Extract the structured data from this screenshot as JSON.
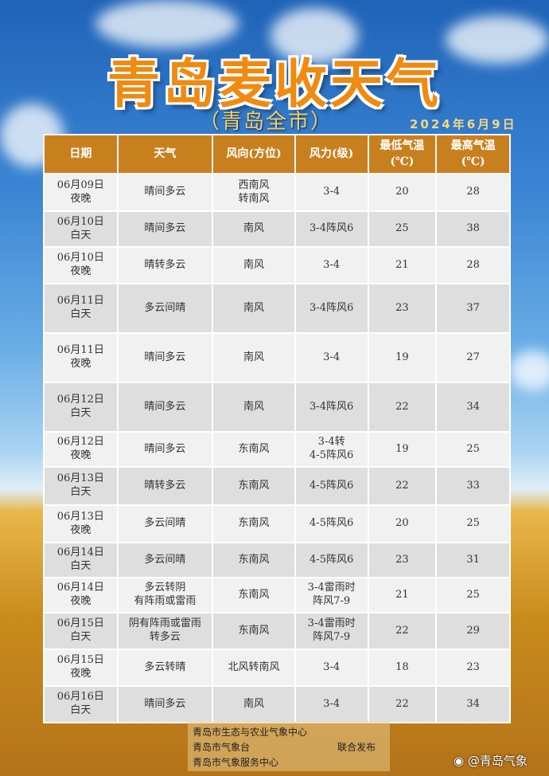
{
  "title": "青岛麦收天气",
  "subtitle": "（青岛全市）",
  "date": "2024年6月9日",
  "headers": [
    "日期",
    "天气",
    "风向(方位)",
    "风力(级)",
    "最低气温\n(℃)",
    "最高气温\n(℃)"
  ],
  "rows": [
    [
      "06月09日\n夜晚",
      "晴间多云",
      "西南风\n转南风",
      "3-4",
      "20",
      "28"
    ],
    [
      "06月10日\n白天",
      "晴间多云",
      "南风",
      "3-4阵风6",
      "25",
      "38"
    ],
    [
      "06月10日\n夜晚",
      "晴转多云",
      "南风",
      "3-4",
      "21",
      "28"
    ],
    [
      "06月11日\n白天",
      "多云间晴",
      "南风",
      "3-4阵风6",
      "23",
      "37"
    ],
    [
      "06月11日\n夜晚",
      "晴间多云",
      "南风",
      "3-4",
      "19",
      "27"
    ],
    [
      "06月12日\n白天",
      "晴间多云",
      "南风",
      "3-4阵风6",
      "22",
      "34"
    ],
    [
      "06月12日\n夜晚",
      "晴间多云",
      "东南风",
      "3-4转\n4-5阵风6",
      "19",
      "25"
    ],
    [
      "06月13日\n白天",
      "晴转多云",
      "东南风",
      "4-5阵风6",
      "22",
      "33"
    ],
    [
      "06月13日\n夜晚",
      "多云间晴",
      "东南风",
      "4-5阵风6",
      "20",
      "25"
    ],
    [
      "06月14日\n白天",
      "多云间晴",
      "东南风",
      "4-5阵风6",
      "23",
      "31"
    ],
    [
      "06月14日\n夜晚",
      "多云转阴\n有阵雨或雷雨",
      "东南风",
      "3-4雷雨时\n阵风7-9",
      "21",
      "25"
    ],
    [
      "06月15日\n白天",
      "阴有阵雨或雷雨\n转多云",
      "东南风",
      "3-4雷雨时\n阵风7-9",
      "22",
      "29"
    ],
    [
      "06月15日\n夜晚",
      "多云转晴",
      "北风转南风",
      "3-4",
      "18",
      "23"
    ],
    [
      "06月16日\n白天",
      "晴间多云",
      "南风",
      "3-4",
      "22",
      "34"
    ]
  ],
  "footer": {
    "orgs": [
      "青岛市生态与农业气象中心",
      "青岛市气象台",
      "青岛市气象服务中心"
    ],
    "joint": "联合发布"
  },
  "watermark": "@青岛气象"
}
